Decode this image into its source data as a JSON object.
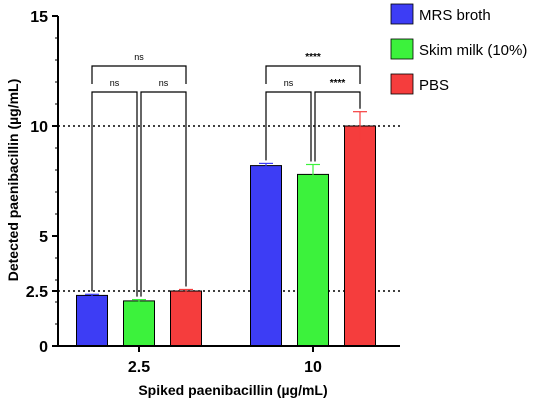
{
  "chart_data": {
    "type": "bar",
    "categories": [
      "2.5",
      "10"
    ],
    "series": [
      {
        "name": "MRS broth",
        "color": "#3d3df5",
        "values": [
          2.3,
          8.2
        ],
        "errors": [
          0.05,
          0.1
        ]
      },
      {
        "name": "Skim milk (10%)",
        "color": "#3cf23c",
        "values": [
          2.05,
          7.8
        ],
        "errors": [
          0.06,
          0.45
        ]
      },
      {
        "name": "PBS",
        "color": "#f53d3d",
        "values": [
          2.5,
          10.0
        ],
        "errors": [
          0.07,
          0.65
        ]
      }
    ],
    "xlabel": "Spiked paenibacillin (µg/mL)",
    "ylabel": "Detected paenibacillin (µg/mL)",
    "ylim": [
      0,
      15
    ],
    "yticks": [
      {
        "value": 0,
        "label": "0"
      },
      {
        "value": 2.5,
        "label": "2.5"
      },
      {
        "value": 5,
        "label": "5"
      },
      {
        "value": 10,
        "label": "10"
      },
      {
        "value": 15,
        "label": "15"
      }
    ],
    "reference_lines": [
      2.5,
      10
    ],
    "legend_position": "top-right",
    "significance": [
      {
        "group": 0,
        "from": 0,
        "to": 2,
        "label": "ns"
      },
      {
        "group": 0,
        "from": 0,
        "to": 1,
        "label": "ns"
      },
      {
        "group": 0,
        "from": 1,
        "to": 2,
        "label": "ns"
      },
      {
        "group": 1,
        "from": 0,
        "to": 2,
        "label": "****"
      },
      {
        "group": 1,
        "from": 0,
        "to": 1,
        "label": "ns"
      },
      {
        "group": 1,
        "from": 1,
        "to": 2,
        "label": "****"
      }
    ]
  }
}
